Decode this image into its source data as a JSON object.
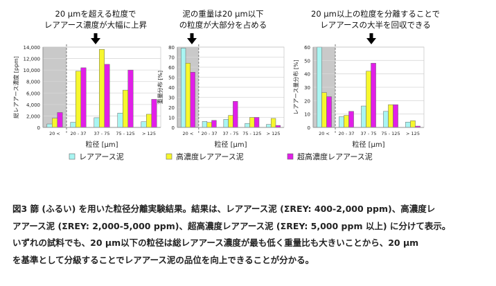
{
  "annotations": [
    {
      "line1": "20 µmを超える粒度で",
      "line2": "レアアース濃度が大幅に上昇"
    },
    {
      "line1": "泥の重量は20 µm以下",
      "line2": "の粒度が大部分を占める"
    },
    {
      "line1": "20 µm以上の粒度を分離することで",
      "line2": "レアアースの大半を回収できる"
    }
  ],
  "legend": [
    {
      "label": "レアアース泥",
      "color": "#a9f5f2"
    },
    {
      "label": "高濃度レアアース泥",
      "color": "#f7f72e"
    },
    {
      "label": "超高濃度レアアース泥",
      "color": "#e11fe8"
    }
  ],
  "chart_data": [
    {
      "type": "bar",
      "categories": [
        "20 <",
        "20 - 37",
        "37 - 75",
        "75 - 125",
        "> 125"
      ],
      "ylabel": "総レアアース濃度 [ppm]",
      "xlabel": "粒径 [µm]",
      "ylim": [
        0,
        14000
      ],
      "yticks": [
        "0",
        "2,000",
        "4,000",
        "6,000",
        "8,000",
        "10,000",
        "12,000",
        "14,000"
      ],
      "shaded_category": "20 <",
      "series": [
        {
          "name": "レアアース泥",
          "values": [
            600,
            900,
            1700,
            2500,
            1000
          ]
        },
        {
          "name": "高濃度レアアース泥",
          "values": [
            1600,
            9800,
            13600,
            6500,
            2300
          ]
        },
        {
          "name": "超高濃度レアアース泥",
          "values": [
            2600,
            10400,
            11000,
            10000,
            4900
          ]
        }
      ]
    },
    {
      "type": "bar",
      "categories": [
        "20 <",
        "20 - 37",
        "37 - 75",
        "75 - 125",
        "> 125"
      ],
      "ylabel": "重量分布 [%]",
      "xlabel": "粒径 [µm]",
      "ylim": [
        0,
        80
      ],
      "yticks": [
        "0",
        "10",
        "20",
        "30",
        "40",
        "50",
        "60",
        "70",
        "80"
      ],
      "shaded_category": "20 <",
      "series": [
        {
          "name": "レアアース泥",
          "values": [
            79,
            6,
            8,
            4,
            3
          ]
        },
        {
          "name": "高濃度レアアース泥",
          "values": [
            64,
            5,
            12,
            10,
            9
          ]
        },
        {
          "name": "超高濃度レアアース泥",
          "values": [
            55,
            7,
            26,
            10,
            2
          ]
        }
      ]
    },
    {
      "type": "bar",
      "categories": [
        "20 <",
        "20 - 37",
        "37 - 75",
        "75 - 125",
        "> 125"
      ],
      "ylabel": "レアアース量分布 [%]",
      "xlabel": "粒径 [µm]",
      "ylim": [
        0,
        60
      ],
      "yticks": [
        "0",
        "10",
        "20",
        "30",
        "40",
        "50",
        "60"
      ],
      "shaded_category": "20 <",
      "series": [
        {
          "name": "レアアース泥",
          "values": [
            60,
            8,
            16,
            12,
            4
          ]
        },
        {
          "name": "高濃度レアアース泥",
          "values": [
            26,
            9,
            42,
            17,
            5
          ]
        },
        {
          "name": "超高濃度レアアース泥",
          "values": [
            23,
            12,
            48,
            17,
            1
          ]
        }
      ]
    }
  ],
  "caption": [
    "図3 篩 (ふるい) を用いた粒径分離実験結果。結果は、レアアース泥 (ΣREY: 400-2,000 ppm)、高濃度レ",
    "アアース泥 (ΣREY: 2,000-5,000 ppm)、超高濃度レアアース泥 (ΣREY: 5,000 ppm 以上) に分けて表示。",
    "いずれの試料でも、20 µm以下の粒径は総レアアース濃度が最も低く重量比も大きいことから、20 µm",
    "を基準として分級することでレアアース泥の品位を向上できることが分かる。"
  ]
}
